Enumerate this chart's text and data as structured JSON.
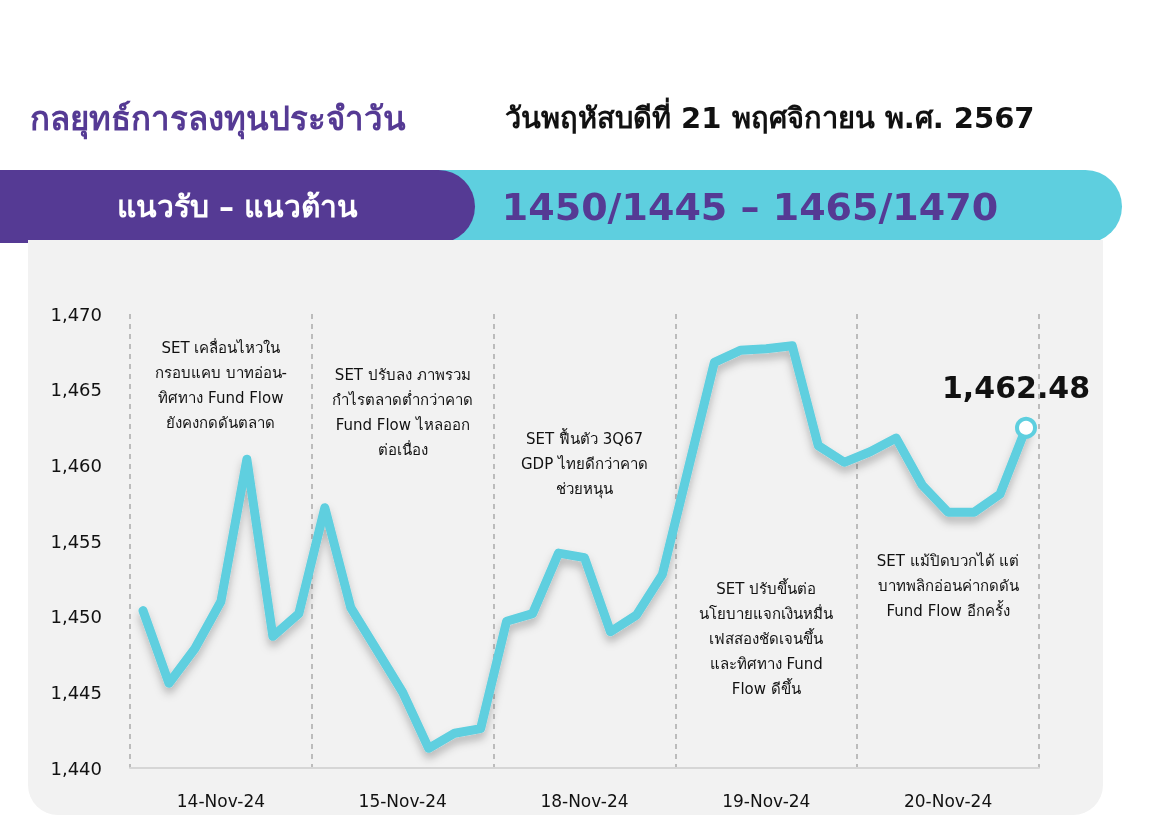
{
  "chart_data": {
    "type": "line",
    "title": "กลยุทธ์การลงทุนประจำวัน",
    "subtitle": "วันพฤหัสบดีที่ 21 พฤศจิกายน พ.ศ. 2567",
    "annotations": [
      "แนวรับ – แนวต้าน",
      "1450/1445 – 1465/1470",
      "SET เคลื่อนไหวใน\nกรอบแคบ บาทอ่อน-\nทิศทาง Fund Flow\nยังคงกดดันตลาด",
      "SET ปรับลง ภาพรวม\nกำไรตลาดต่ำกว่าคาด\nFund Flow ไหลออก\nต่อเนื่อง",
      "SET ฟื้นตัว 3Q67\nGDP ไทยดีกว่าคาด\nช่วยหนุน",
      "SET ปรับขึ้นต่อ\nนโยบายแจกเงินหมื่น\nเฟสสองชัดเจนขึ้น\nและทิศทาง Fund\nFlow ดีขึ้น",
      "SET แม้ปิดบวกได้ แต่\nบาทพลิกอ่อนค่ากดดัน\nFund Flow อีกครั้ง"
    ],
    "categories": [
      null,
      null,
      null,
      "14-Nov-24",
      null,
      null,
      null,
      null,
      null,
      null,
      "15-Nov-24",
      null,
      null,
      null,
      null,
      null,
      null,
      "18-Nov-24",
      null,
      null,
      null,
      null,
      null,
      null,
      "19-Nov-24",
      null,
      null,
      null,
      null,
      null,
      null,
      "20-Nov-24",
      null,
      null,
      null
    ],
    "series": [
      {
        "color": "#5ecfdf",
        "values": [
          1450.4,
          1445.6,
          1447.9,
          1451.0,
          1460.4,
          1448.7,
          1450.2,
          1457.2,
          1450.6,
          1447.8,
          1445.0,
          1441.3,
          1442.3,
          1442.6,
          1449.7,
          1450.2,
          1454.2,
          1453.9,
          1449.0,
          1450.1,
          1452.8,
          1459.8,
          1466.8,
          1467.6,
          1467.7,
          1467.9,
          1461.3,
          1460.2,
          1460.9,
          1461.8,
          1458.7,
          1456.9,
          1456.9,
          1458.1,
          1462.48
        ],
        "value_labels": [
          null,
          null,
          null,
          null,
          null,
          null,
          null,
          null,
          null,
          null,
          null,
          null,
          null,
          null,
          null,
          null,
          null,
          null,
          null,
          null,
          null,
          null,
          null,
          null,
          null,
          null,
          null,
          null,
          null,
          null,
          null,
          null,
          null,
          null,
          "1,462.48"
        ]
      }
    ],
    "ylim": [
      1440,
      1470
    ],
    "yticks": [
      {
        "value": 1440,
        "label": "1,440"
      },
      {
        "value": 1445,
        "label": "1,445"
      },
      {
        "value": 1450,
        "label": "1,450"
      },
      {
        "value": 1455,
        "label": "1,455"
      },
      {
        "value": 1460,
        "label": "1,460"
      },
      {
        "value": 1465,
        "label": "1,465"
      },
      {
        "value": 1470,
        "label": "1,470"
      }
    ],
    "grid": "x",
    "marker": "none",
    "line_style": "solid"
  }
}
